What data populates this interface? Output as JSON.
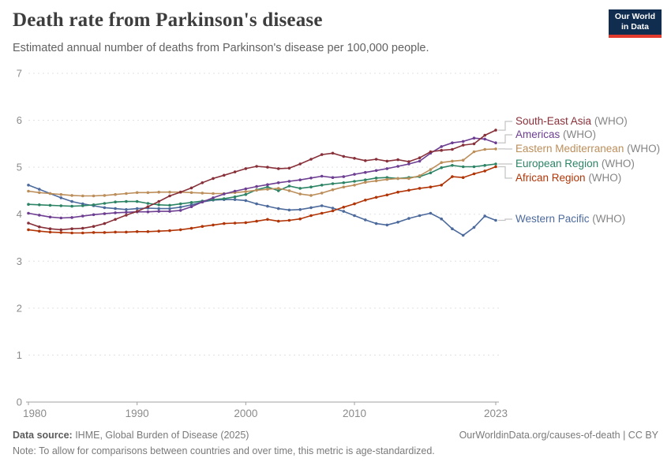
{
  "header": {
    "title": "Death rate from Parkinson's disease",
    "subtitle": "Estimated annual number of deaths from Parkinson's disease per 100,000 people.",
    "logo": {
      "line1": "Our World",
      "line2": "in Data",
      "bg_color": "#102D50",
      "accent_color": "#E23B2E"
    }
  },
  "chart_data": {
    "type": "line",
    "title": "Death rate from Parkinson's disease",
    "xlabel": "",
    "ylabel": "",
    "ylim": [
      0,
      7
    ],
    "y_ticks": [
      0,
      1,
      2,
      3,
      4,
      5,
      6,
      7
    ],
    "x_ticks": [
      1980,
      1990,
      2000,
      2010,
      2023
    ],
    "grid": "horizontal-dashed",
    "legend_position": "right",
    "colors": {
      "gridline": "#e0e0e0",
      "axis_line": "#a0a0a0",
      "tick_label": "#8b8b8b",
      "legend_connector": "#c4c4c4",
      "legend_suffix": "#858585"
    },
    "x": [
      1980,
      1981,
      1982,
      1983,
      1984,
      1985,
      1986,
      1987,
      1988,
      1989,
      1990,
      1991,
      1992,
      1993,
      1994,
      1995,
      1996,
      1997,
      1998,
      1999,
      2000,
      2001,
      2002,
      2003,
      2004,
      2005,
      2006,
      2007,
      2008,
      2009,
      2010,
      2011,
      2012,
      2013,
      2014,
      2015,
      2016,
      2017,
      2018,
      2019,
      2020,
      2021,
      2022,
      2023
    ],
    "series": [
      {
        "name": "South-East Asia",
        "suffix": " (WHO)",
        "color": "#883039",
        "values": [
          3.81,
          3.73,
          3.69,
          3.67,
          3.69,
          3.7,
          3.74,
          3.8,
          3.89,
          3.98,
          4.06,
          4.16,
          4.27,
          4.39,
          4.47,
          4.56,
          4.67,
          4.76,
          4.83,
          4.9,
          4.97,
          5.02,
          5.0,
          4.97,
          4.98,
          5.07,
          5.17,
          5.27,
          5.3,
          5.23,
          5.19,
          5.14,
          5.17,
          5.13,
          5.16,
          5.12,
          5.2,
          5.33,
          5.36,
          5.38,
          5.47,
          5.5,
          5.68,
          5.79
        ]
      },
      {
        "name": "Americas",
        "suffix": " (WHO)",
        "color": "#6D3E91",
        "values": [
          4.02,
          3.98,
          3.94,
          3.92,
          3.93,
          3.96,
          3.99,
          4.01,
          4.03,
          4.04,
          4.05,
          4.05,
          4.06,
          4.06,
          4.08,
          4.16,
          4.26,
          4.35,
          4.43,
          4.49,
          4.54,
          4.59,
          4.63,
          4.67,
          4.7,
          4.73,
          4.77,
          4.81,
          4.78,
          4.8,
          4.85,
          4.89,
          4.93,
          4.97,
          5.02,
          5.07,
          5.13,
          5.3,
          5.44,
          5.52,
          5.55,
          5.62,
          5.6,
          5.52
        ]
      },
      {
        "name": "Eastern Mediterranean",
        "suffix": " (WHO)",
        "color": "#BC8E5A",
        "values": [
          4.49,
          4.46,
          4.44,
          4.42,
          4.4,
          4.39,
          4.39,
          4.4,
          4.42,
          4.44,
          4.46,
          4.46,
          4.47,
          4.47,
          4.47,
          4.46,
          4.45,
          4.44,
          4.44,
          4.46,
          4.48,
          4.51,
          4.53,
          4.55,
          4.5,
          4.43,
          4.4,
          4.45,
          4.52,
          4.58,
          4.62,
          4.68,
          4.71,
          4.74,
          4.76,
          4.76,
          4.82,
          4.95,
          5.1,
          5.13,
          5.15,
          5.33,
          5.38,
          5.39
        ]
      },
      {
        "name": "European Region",
        "suffix": " (WHO)",
        "color": "#2C8465",
        "values": [
          4.21,
          4.2,
          4.19,
          4.18,
          4.17,
          4.18,
          4.2,
          4.23,
          4.26,
          4.27,
          4.27,
          4.23,
          4.2,
          4.19,
          4.22,
          4.25,
          4.28,
          4.31,
          4.33,
          4.37,
          4.42,
          4.52,
          4.58,
          4.5,
          4.6,
          4.55,
          4.58,
          4.62,
          4.65,
          4.67,
          4.7,
          4.73,
          4.77,
          4.78,
          4.76,
          4.78,
          4.8,
          4.88,
          4.99,
          5.04,
          5.01,
          5.01,
          5.04,
          5.07
        ]
      },
      {
        "name": "African Region",
        "suffix": " (WHO)",
        "color": "#B13507",
        "values": [
          3.67,
          3.64,
          3.62,
          3.61,
          3.6,
          3.6,
          3.61,
          3.61,
          3.62,
          3.62,
          3.63,
          3.63,
          3.64,
          3.65,
          3.67,
          3.7,
          3.74,
          3.77,
          3.8,
          3.81,
          3.82,
          3.85,
          3.89,
          3.85,
          3.87,
          3.9,
          3.97,
          4.02,
          4.07,
          4.15,
          4.22,
          4.3,
          4.36,
          4.41,
          4.47,
          4.51,
          4.55,
          4.58,
          4.62,
          4.8,
          4.78,
          4.86,
          4.92,
          5.01
        ]
      },
      {
        "name": "Western Pacific",
        "suffix": " (WHO)",
        "color": "#4C6A9C",
        "values": [
          4.62,
          4.53,
          4.44,
          4.35,
          4.27,
          4.22,
          4.18,
          4.14,
          4.12,
          4.1,
          4.12,
          4.13,
          4.12,
          4.12,
          4.15,
          4.2,
          4.26,
          4.3,
          4.31,
          4.31,
          4.29,
          4.22,
          4.17,
          4.12,
          4.09,
          4.1,
          4.14,
          4.18,
          4.13,
          4.06,
          3.97,
          3.88,
          3.8,
          3.77,
          3.83,
          3.91,
          3.97,
          4.02,
          3.9,
          3.69,
          3.55,
          3.72,
          3.96,
          3.87
        ]
      }
    ]
  },
  "footer": {
    "source_label": "Data source:",
    "source_text": " IHME, Global Burden of Disease (2025)",
    "note_label": "Note:",
    "note_text": " To allow for comparisons between countries and over time, this metric is age-standardized.",
    "link_text": "OurWorldinData.org/causes-of-death | CC BY"
  }
}
